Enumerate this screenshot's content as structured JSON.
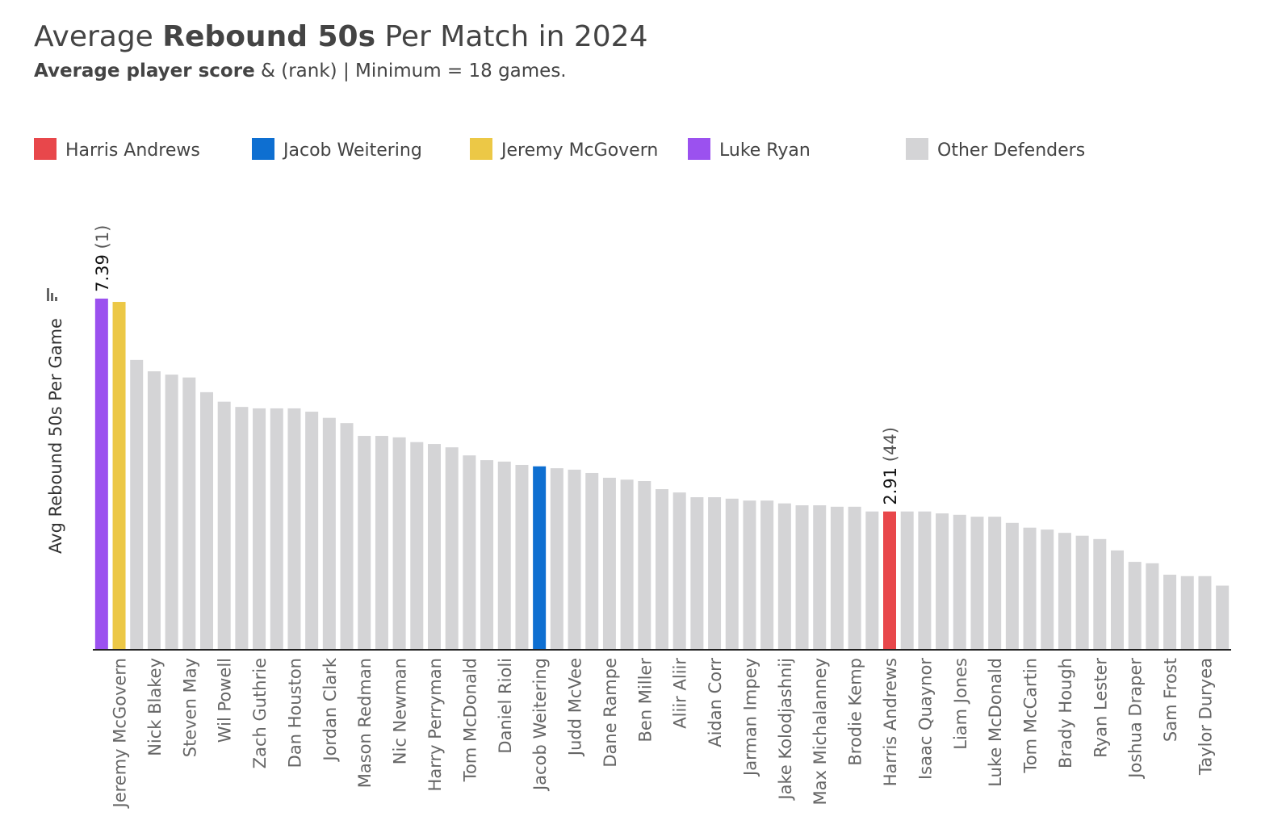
{
  "chart_data": {
    "type": "bar",
    "title": {
      "pre": "Average",
      "bold": "Rebound 50s",
      "post": "Per Match in 2024"
    },
    "subtitle": {
      "bold": "Average player score",
      "rest": "& (rank) | Minimum = 18 games."
    },
    "ylabel": "Avg Rebound 50s Per Game",
    "legend": [
      {
        "name": "Harris Andrews",
        "color": "#e8474b"
      },
      {
        "name": "Jacob Weitering",
        "color": "#0e6fd1"
      },
      {
        "name": "Jeremy McGovern",
        "color": "#ecc846"
      },
      {
        "name": "Luke Ryan",
        "color": "#9b51ef"
      },
      {
        "name": "Other Defenders",
        "color": "#d4d4d6"
      }
    ],
    "categories": [
      null,
      "Jeremy McGovern",
      null,
      "Nick Blakey",
      null,
      "Steven May",
      null,
      "Wil Powell",
      null,
      "Zach Guthrie",
      null,
      "Dan Houston",
      null,
      "Jordan Clark",
      null,
      "Mason Redman",
      null,
      "Nic Newman",
      null,
      "Harry Perryman",
      null,
      "Tom McDonald",
      null,
      "Daniel Rioli",
      null,
      "Jacob Weitering",
      null,
      "Judd McVee",
      null,
      "Dane Rampe",
      null,
      "Ben Miller",
      null,
      "Aliir Aliir",
      null,
      "Aidan Corr",
      null,
      "Jarman Impey",
      null,
      "Jake Kolodjashnij",
      null,
      "Max Michalanney",
      null,
      "Brodie Kemp",
      null,
      "Harris Andrews",
      null,
      "Isaac Quaynor",
      null,
      "Liam Jones",
      null,
      "Luke McDonald",
      null,
      "Tom McCartin",
      null,
      "Brady Hough",
      null,
      "Ryan Lester",
      null,
      "Joshua Draper",
      null,
      "Sam Frost",
      null,
      "Taylor Duryea",
      null
    ],
    "values": [
      7.39,
      7.32,
      6.1,
      5.86,
      5.79,
      5.73,
      5.42,
      5.22,
      5.11,
      5.08,
      5.08,
      5.08,
      5.01,
      4.88,
      4.77,
      4.5,
      4.5,
      4.47,
      4.37,
      4.33,
      4.26,
      4.09,
      3.99,
      3.96,
      3.89,
      3.86,
      3.82,
      3.79,
      3.72,
      3.62,
      3.58,
      3.55,
      3.38,
      3.31,
      3.21,
      3.21,
      3.18,
      3.14,
      3.14,
      3.08,
      3.04,
      3.04,
      3.01,
      3.01,
      2.91,
      2.91,
      2.91,
      2.91,
      2.87,
      2.84,
      2.8,
      2.8,
      2.67,
      2.57,
      2.53,
      2.46,
      2.4,
      2.33,
      2.09,
      1.85,
      1.82,
      1.58,
      1.55,
      1.55,
      1.35
    ],
    "value_labels": [
      {
        "value": "7.39",
        "rank": "(1)"
      },
      null,
      null,
      null,
      null,
      null,
      null,
      null,
      null,
      null,
      null,
      null,
      null,
      null,
      null,
      null,
      null,
      null,
      null,
      null,
      null,
      null,
      null,
      null,
      null,
      null,
      null,
      null,
      null,
      null,
      null,
      null,
      null,
      null,
      null,
      null,
      null,
      null,
      null,
      null,
      null,
      null,
      null,
      null,
      null,
      {
        "value": "2.91",
        "rank": "(44)"
      },
      null,
      null,
      null,
      null,
      null,
      null,
      null,
      null,
      null,
      null,
      null,
      null,
      null,
      null,
      null,
      null,
      null,
      null,
      null
    ],
    "colors": [
      "#9b51ef",
      "#ecc846",
      "#d4d4d6",
      "#d4d4d6",
      "#d4d4d6",
      "#d4d4d6",
      "#d4d4d6",
      "#d4d4d6",
      "#d4d4d6",
      "#d4d4d6",
      "#d4d4d6",
      "#d4d4d6",
      "#d4d4d6",
      "#d4d4d6",
      "#d4d4d6",
      "#d4d4d6",
      "#d4d4d6",
      "#d4d4d6",
      "#d4d4d6",
      "#d4d4d6",
      "#d4d4d6",
      "#d4d4d6",
      "#d4d4d6",
      "#d4d4d6",
      "#d4d4d6",
      "#0e6fd1",
      "#d4d4d6",
      "#d4d4d6",
      "#d4d4d6",
      "#d4d4d6",
      "#d4d4d6",
      "#d4d4d6",
      "#d4d4d6",
      "#d4d4d6",
      "#d4d4d6",
      "#d4d4d6",
      "#d4d4d6",
      "#d4d4d6",
      "#d4d4d6",
      "#d4d4d6",
      "#d4d4d6",
      "#d4d4d6",
      "#d4d4d6",
      "#d4d4d6",
      "#d4d4d6",
      "#e8474b",
      "#d4d4d6",
      "#d4d4d6",
      "#d4d4d6",
      "#d4d4d6",
      "#d4d4d6",
      "#d4d4d6",
      "#d4d4d6",
      "#d4d4d6",
      "#d4d4d6",
      "#d4d4d6",
      "#d4d4d6",
      "#d4d4d6",
      "#d4d4d6",
      "#d4d4d6",
      "#d4d4d6",
      "#d4d4d6",
      "#d4d4d6",
      "#d4d4d6",
      "#d4d4d6"
    ],
    "ylim": [
      0,
      8
    ]
  }
}
